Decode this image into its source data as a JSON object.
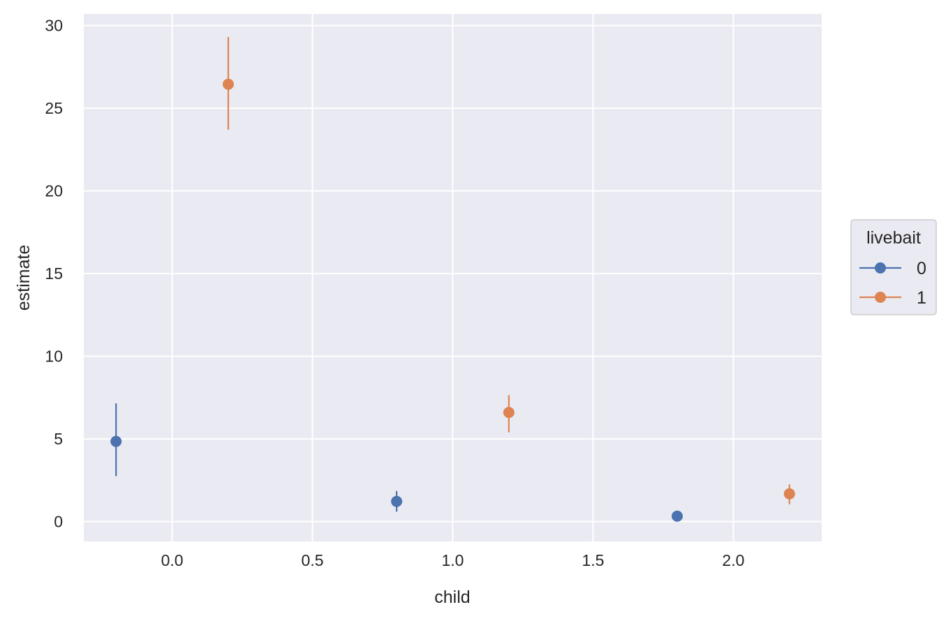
{
  "chart_data": {
    "type": "scatter",
    "xlabel": "child",
    "ylabel": "estimate",
    "xlim": [
      -0.315,
      2.315
    ],
    "ylim": [
      -1.2,
      30.7
    ],
    "x_ticks": [
      0.0,
      0.5,
      1.0,
      1.5,
      2.0
    ],
    "x_tick_labels": [
      "0.0",
      "0.5",
      "1.0",
      "1.5",
      "2.0"
    ],
    "y_ticks": [
      0,
      5,
      10,
      15,
      20,
      25,
      30
    ],
    "y_tick_labels": [
      "0",
      "5",
      "10",
      "15",
      "20",
      "25",
      "30"
    ],
    "grid": true,
    "legend": {
      "title": "livebait",
      "placement": "right"
    },
    "series": [
      {
        "name": "0",
        "color": "#4c72b0",
        "points": [
          {
            "x": -0.2,
            "y": 4.85,
            "lo": 2.75,
            "hi": 7.15
          },
          {
            "x": 0.8,
            "y": 1.22,
            "lo": 0.6,
            "hi": 1.85
          },
          {
            "x": 1.8,
            "y": 0.33,
            "lo": 0.2,
            "hi": 0.5
          }
        ]
      },
      {
        "name": "1",
        "color": "#dd8452",
        "points": [
          {
            "x": 0.2,
            "y": 26.45,
            "lo": 23.7,
            "hi": 29.3
          },
          {
            "x": 1.2,
            "y": 6.6,
            "lo": 5.4,
            "hi": 7.65
          },
          {
            "x": 2.2,
            "y": 1.68,
            "lo": 1.05,
            "hi": 2.25
          }
        ]
      }
    ]
  }
}
